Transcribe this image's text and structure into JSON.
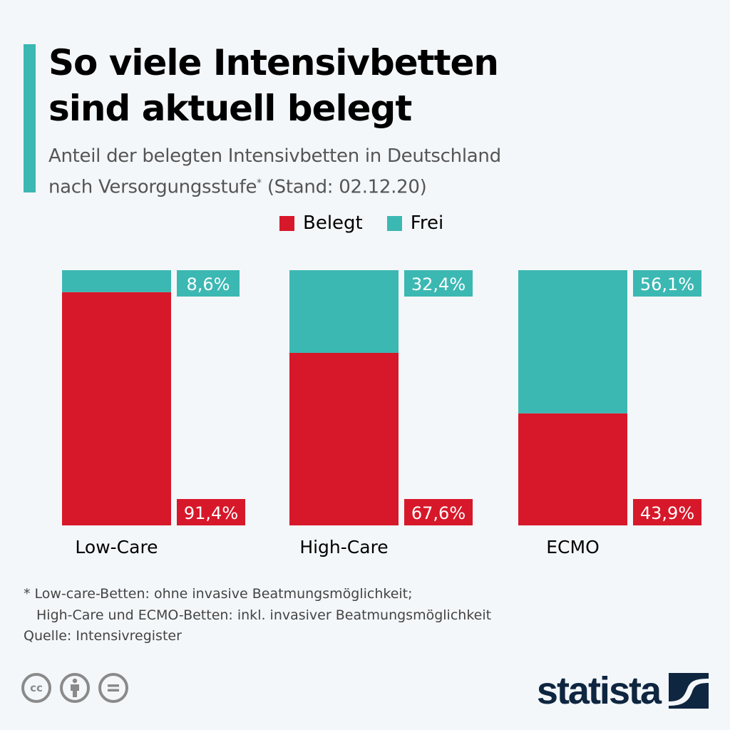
{
  "header": {
    "title_line1": "So viele Intensivbetten",
    "title_line2": "sind aktuell belegt",
    "subtitle_line1": "Anteil der belegten Intensivbetten in Deutschland",
    "subtitle_line2": "nach Versorgungsstufe",
    "subtitle_sup": "*",
    "subtitle_date": " (Stand: 02.12.20)"
  },
  "colors": {
    "belegt": "#d7182a",
    "frei": "#3cb8b3",
    "accent": "#3cb8b3",
    "brand": "#0f2640"
  },
  "chart_data": {
    "type": "bar",
    "stacked": true,
    "title": "So viele Intensivbetten sind aktuell belegt",
    "categories": [
      "Low-Care",
      "High-Care",
      "ECMO"
    ],
    "series": [
      {
        "name": "Belegt",
        "values": [
          91.4,
          67.6,
          43.9
        ],
        "labels": [
          "91,4%",
          "67,6%",
          "43,9%"
        ]
      },
      {
        "name": "Frei",
        "values": [
          8.6,
          32.4,
          56.1
        ],
        "labels": [
          "8,6%",
          "32,4%",
          "56,1%"
        ]
      }
    ],
    "unit": "%",
    "ylim": [
      0,
      100
    ],
    "xlabel": "",
    "ylabel": "",
    "grid": false,
    "legend": {
      "position": "top-center",
      "entries": [
        "Belegt",
        "Frei"
      ]
    }
  },
  "footer": {
    "footnote_line1": "* Low-care-Betten: ohne invasive Beatmungsmöglichkeit;",
    "footnote_line2": "High-Care und ECMO-Betten: inkl. invasiver Beatmungsmöglichkeit",
    "source": "Quelle: Intensivregister",
    "cc_icons": [
      "cc-icon",
      "attribution-icon",
      "no-derivatives-icon"
    ],
    "cc_label": "cc",
    "logo_text": "statista"
  }
}
